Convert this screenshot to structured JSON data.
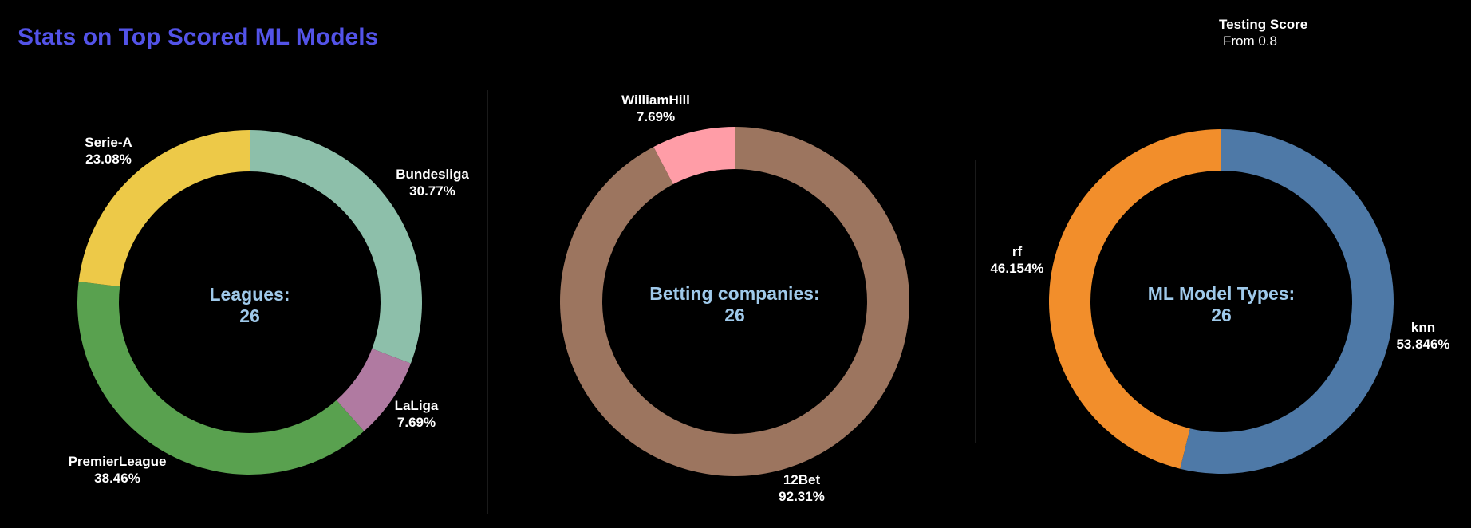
{
  "title": "Stats on Top Scored ML Models",
  "filter": {
    "label": "Testing Score",
    "value": "From 0.8"
  },
  "colors": {
    "title": "#5353e8",
    "center_text": "#9fc9ea",
    "label_text": "#ffffff",
    "background": "#000000",
    "divider": "#333333"
  },
  "chart_data": [
    {
      "type": "pie",
      "donut": true,
      "center_label": "Leagues:",
      "center_value": "26",
      "slices": [
        {
          "label": "Bundesliga",
          "pct_label": "30.77%",
          "value": 30.77,
          "color": "#8dbfaa"
        },
        {
          "label": "LaLiga",
          "pct_label": "7.69%",
          "value": 7.69,
          "color": "#b07aa1"
        },
        {
          "label": "PremierLeague",
          "pct_label": "38.46%",
          "value": 38.46,
          "color": "#59a14f"
        },
        {
          "label": "Serie-A",
          "pct_label": "23.08%",
          "value": 23.08,
          "color": "#edc948"
        }
      ]
    },
    {
      "type": "pie",
      "donut": true,
      "center_label": "Betting companies:",
      "center_value": "26",
      "slices": [
        {
          "label": "12Bet",
          "pct_label": "92.31%",
          "value": 92.31,
          "color": "#9c755f"
        },
        {
          "label": "WilliamHill",
          "pct_label": "7.69%",
          "value": 7.69,
          "color": "#ff9da7"
        }
      ]
    },
    {
      "type": "pie",
      "donut": true,
      "center_label": "ML Model Types:",
      "center_value": "26",
      "slices": [
        {
          "label": "knn",
          "pct_label": "53.846%",
          "value": 53.846,
          "color": "#4e79a7"
        },
        {
          "label": "rf",
          "pct_label": "46.154%",
          "value": 46.154,
          "color": "#f28e2b"
        }
      ]
    }
  ]
}
